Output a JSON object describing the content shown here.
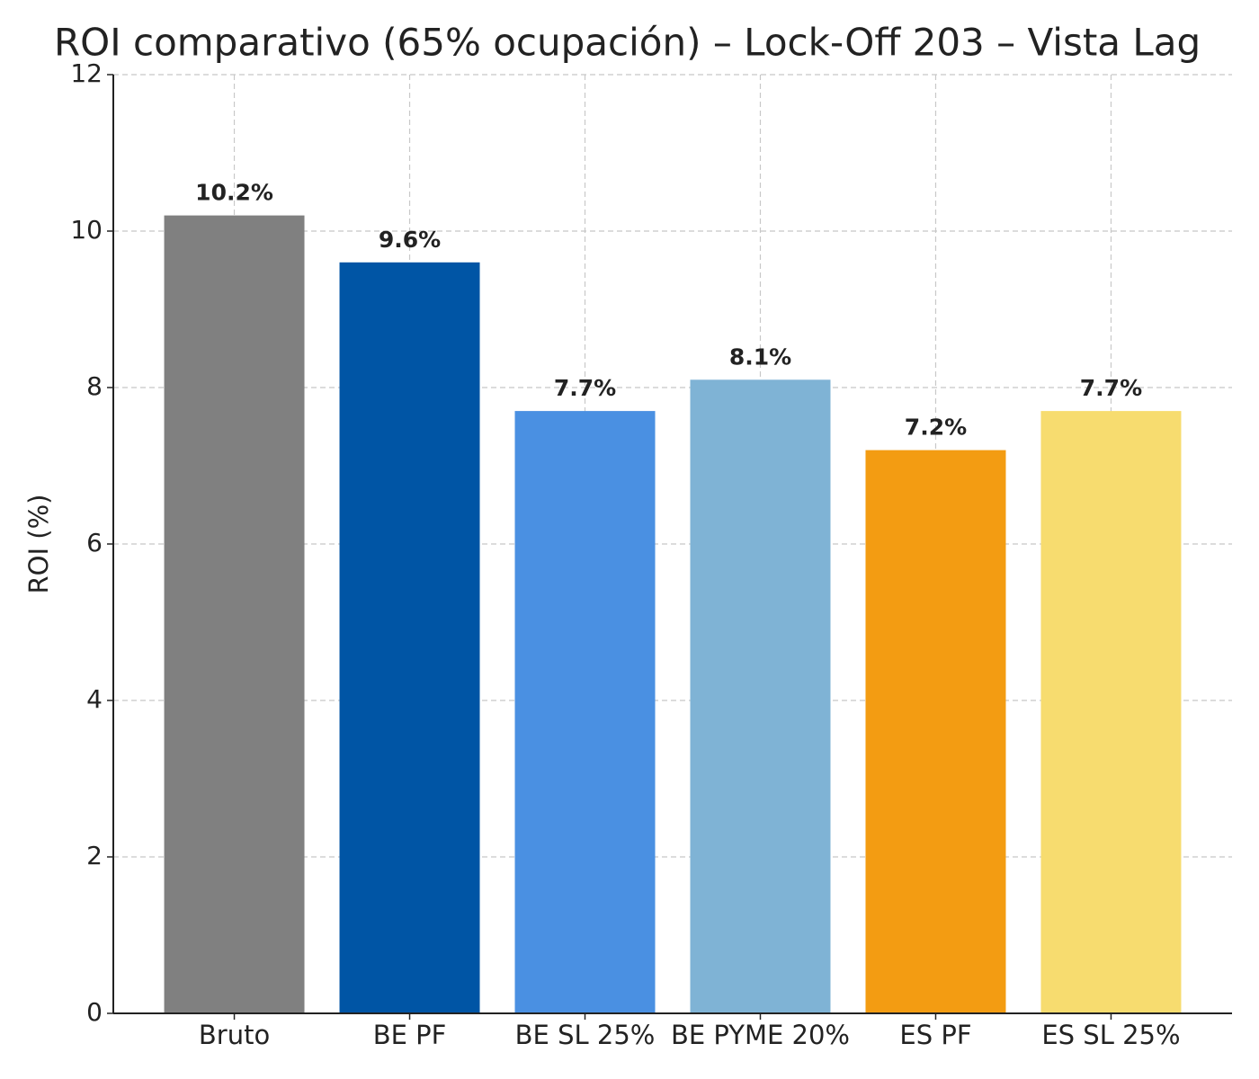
{
  "chart_data": {
    "type": "bar",
    "title": "ROI comparativo (65% ocupación) – Lock-Off 203 – Vista Lag",
    "y_label": "ROI (%)",
    "categories": [
      "Bruto",
      "BE PF",
      "BE SL 25%",
      "BE PYME 20%",
      "ES PF",
      "ES SL 25%"
    ],
    "values": [
      10.2,
      9.6,
      7.7,
      8.1,
      7.2,
      7.7
    ],
    "value_labels": [
      "10.2%",
      "9.6%",
      "7.7%",
      "8.1%",
      "7.2%",
      "7.7%"
    ],
    "colors": [
      "#808080",
      "#0055a5",
      "#4a90e2",
      "#7fb3d5",
      "#f39c12",
      "#f7dc6f"
    ],
    "ylim": [
      0,
      12
    ],
    "yticks": [
      0,
      2,
      4,
      6,
      8,
      10,
      12
    ],
    "grid": true
  }
}
